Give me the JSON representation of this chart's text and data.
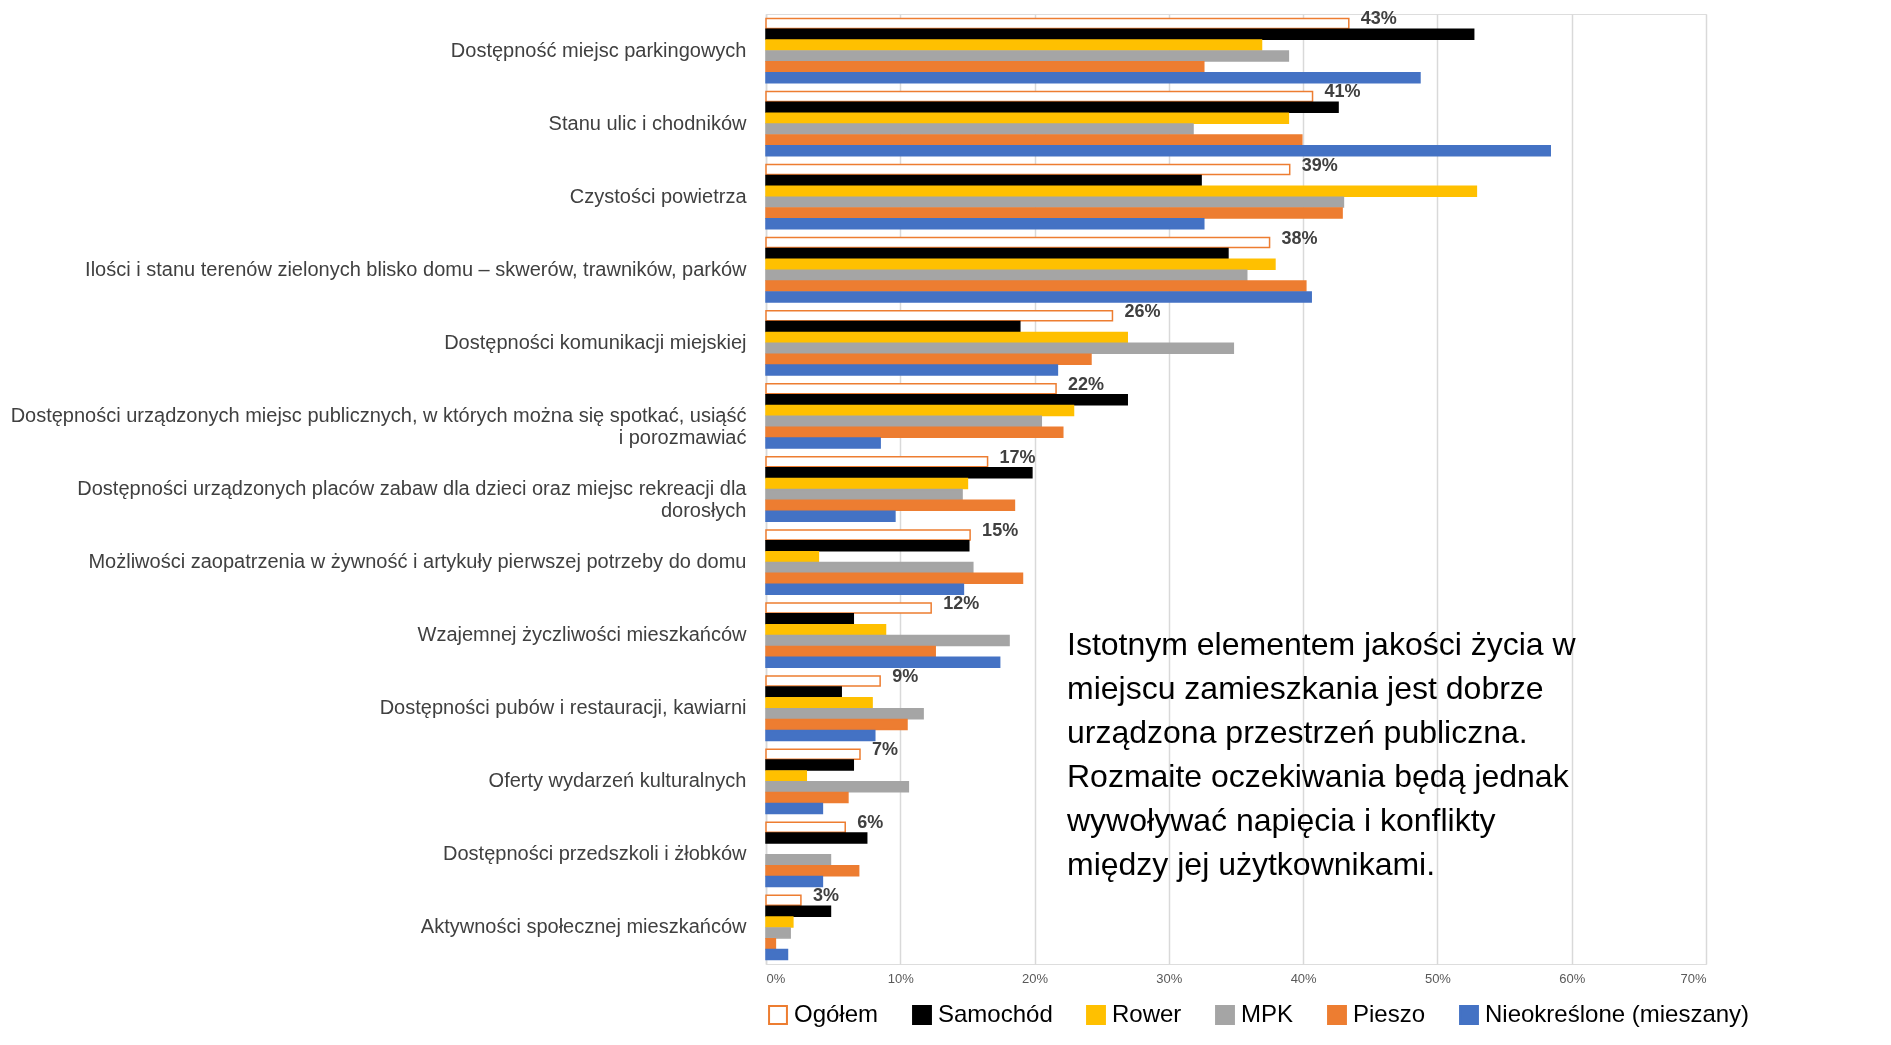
{
  "chart_data": {
    "type": "bar",
    "orientation": "horizontal",
    "categories": [
      "Dostępność miejsc parkingowych",
      "Stanu ulic i chodników",
      "Czystości powietrza",
      "Ilości i stanu terenów zielonych blisko domu – skwerów, trawników, parków",
      "Dostępności komunikacji miejskiej",
      "Dostępności urządzonych miejsc publicznych, w których można się spotkać, usiąść i porozmawiać",
      "Dostępności urządzonych placów zabaw dla dzieci oraz miejsc rekreacji dla dorosłych",
      "Możliwości zaopatrzenia w żywność i artykuły pierwszej potrzeby do domu",
      "Wzajemnej życzliwości mieszkańców",
      "Dostępności pubów i restauracji, kawiarni",
      "Oferty wydarzeń kulturalnych",
      "Dostępności przedszkoli i żłobków",
      "Aktywności społecznej mieszkańców"
    ],
    "series": [
      {
        "name": "Ogółem",
        "color": "#ed7d31",
        "values": [
          43.4,
          40.7,
          39.0,
          37.5,
          25.8,
          21.6,
          16.5,
          15.2,
          12.3,
          8.5,
          7.0,
          5.9,
          2.6
        ],
        "value_labels": [
          "43%",
          "41%",
          "39%",
          "38%",
          "26%",
          "22%",
          "17%",
          "15%",
          "12%",
          "9%",
          "7%",
          "6%",
          "3%"
        ]
      },
      {
        "name": "Samochód",
        "color": "#000000",
        "values": [
          52.7,
          42.6,
          32.4,
          34.4,
          18.9,
          26.9,
          19.8,
          15.1,
          6.5,
          5.6,
          6.5,
          7.5,
          4.8
        ]
      },
      {
        "name": "Rower",
        "color": "#ffc000",
        "values": [
          36.9,
          38.9,
          52.9,
          37.9,
          26.9,
          22.9,
          15.0,
          3.9,
          8.9,
          7.9,
          3.0,
          null,
          2.0
        ]
      },
      {
        "name": "MPK",
        "color": "#a5a5a5",
        "values": [
          38.9,
          31.8,
          43.0,
          35.8,
          34.8,
          20.5,
          14.6,
          15.4,
          18.1,
          11.7,
          10.6,
          4.8,
          1.8
        ]
      },
      {
        "name": "Pieszo",
        "color": "#ed7d31",
        "values": [
          32.6,
          39.9,
          42.9,
          40.2,
          24.2,
          22.1,
          18.5,
          19.1,
          12.6,
          10.5,
          6.1,
          6.9,
          0.7
        ]
      },
      {
        "name": "Nieokreślone (mieszany)",
        "color": "#4472c4",
        "values": [
          48.7,
          58.4,
          32.6,
          40.6,
          21.7,
          8.5,
          9.6,
          14.7,
          17.4,
          8.1,
          4.2,
          4.2,
          1.6
        ]
      }
    ],
    "xlim": [
      0,
      70
    ],
    "xticks": [
      {
        "value": 0,
        "label": "0%"
      },
      {
        "value": 10,
        "label": "10%"
      },
      {
        "value": 20,
        "label": "20%"
      },
      {
        "value": 30,
        "label": "30%"
      },
      {
        "value": 40,
        "label": "40%"
      },
      {
        "value": 50,
        "label": "50%"
      },
      {
        "value": 60,
        "label": "60%"
      },
      {
        "value": 70,
        "label": "70%"
      }
    ],
    "grid": "x",
    "legend": "bottom",
    "annotations": [
      "Istotnym elementem jakości życia w miejscu zamieszkania jest dobrze urządzona przestrzeń publiczna. Rozmaite oczekiwania będą jednak wywoływać napięcia i konflikty między jej użytkownikami."
    ]
  }
}
